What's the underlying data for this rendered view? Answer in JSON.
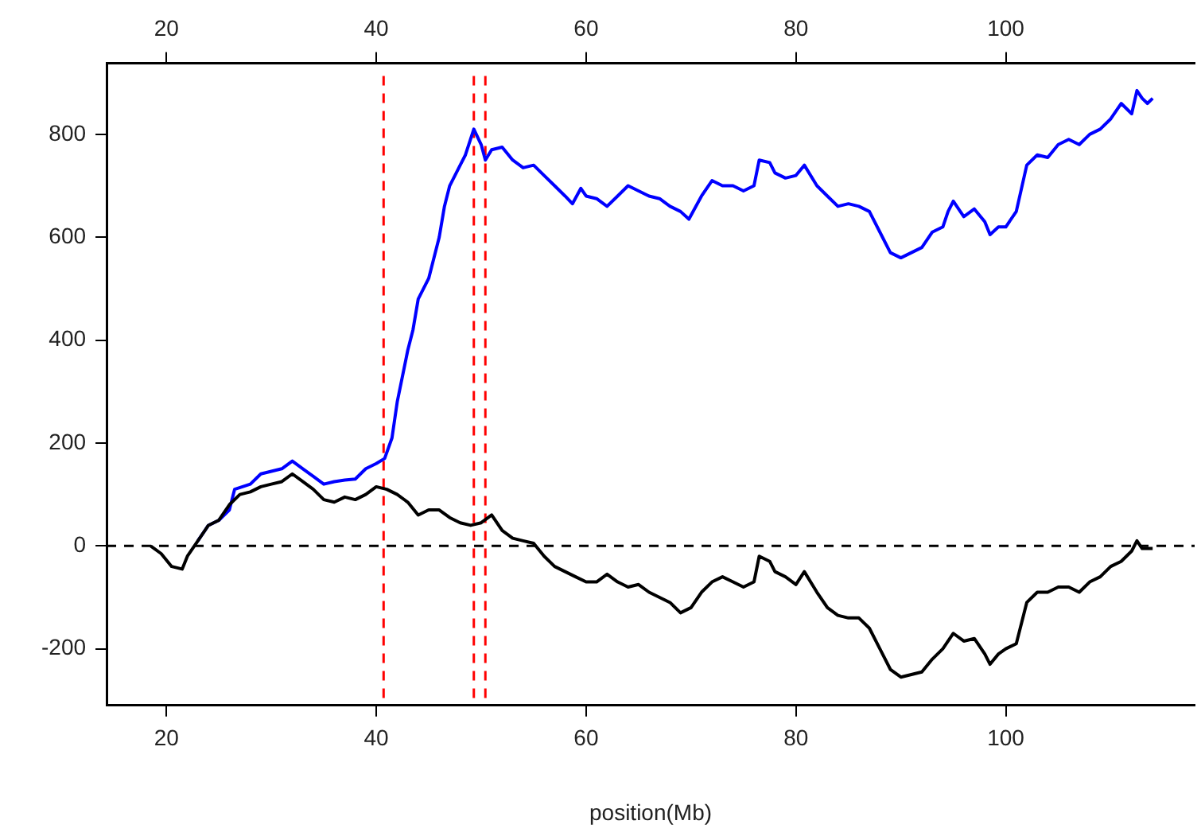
{
  "chart_data": {
    "type": "line",
    "xlabel": "position(Mb)",
    "xlim": [
      14.3,
      118
    ],
    "xticks": [
      20,
      40,
      60,
      80,
      100
    ],
    "x2lim": [
      14.3,
      118
    ],
    "x2ticks": [
      20,
      40,
      60,
      80,
      100
    ],
    "ylim": [
      -310,
      938
    ],
    "yticks": [
      -200,
      0,
      200,
      400,
      600,
      800
    ],
    "grid": false,
    "legend": false,
    "marker": "none",
    "line_style": "solid",
    "series": [
      {
        "color": "#0000ff",
        "x": [
          23,
          24,
          25,
          26,
          26.5,
          28,
          29,
          30,
          31,
          32,
          33,
          34,
          35,
          36,
          37,
          38,
          39,
          40,
          40.8,
          41.5,
          42,
          43,
          43.5,
          44,
          45,
          46,
          46.5,
          47,
          48,
          48.5,
          49.3,
          50,
          50.4,
          51,
          52,
          53,
          54,
          55,
          56,
          57,
          58,
          58.7,
          59.5,
          60,
          61,
          62,
          63,
          64,
          65,
          66,
          67,
          68,
          69,
          69.8,
          71,
          72,
          73,
          74,
          75,
          76,
          76.5,
          77.5,
          78,
          79,
          80,
          80.8,
          82,
          83,
          84,
          85,
          86,
          87,
          88,
          89,
          90,
          91,
          92,
          93,
          94,
          94.5,
          95,
          96,
          97,
          98,
          98.5,
          99.3,
          100,
          101,
          102,
          103,
          104,
          105,
          106,
          107,
          108,
          109,
          110,
          111,
          112,
          112.5,
          113,
          113.5,
          114
        ],
        "values": [
          10,
          40,
          50,
          70,
          110,
          120,
          140,
          145,
          150,
          165,
          150,
          135,
          120,
          125,
          128,
          130,
          150,
          160,
          170,
          210,
          280,
          380,
          420,
          480,
          520,
          600,
          660,
          700,
          740,
          760,
          810,
          780,
          750,
          770,
          775,
          750,
          735,
          740,
          720,
          700,
          680,
          665,
          695,
          680,
          675,
          660,
          680,
          700,
          690,
          680,
          675,
          660,
          650,
          635,
          680,
          710,
          700,
          700,
          690,
          700,
          750,
          745,
          725,
          715,
          720,
          740,
          700,
          680,
          660,
          665,
          660,
          650,
          610,
          570,
          560,
          570,
          580,
          610,
          620,
          650,
          670,
          640,
          655,
          630,
          605,
          620,
          620,
          650,
          740,
          760,
          755,
          780,
          790,
          780,
          800,
          810,
          830,
          860,
          840,
          885,
          870,
          860,
          870
        ]
      },
      {
        "color": "#000000",
        "x": [
          18.5,
          19.5,
          20.5,
          21.5,
          22,
          23,
          24,
          25,
          26,
          27,
          28,
          29,
          30,
          31,
          32,
          33,
          34,
          35,
          36,
          37,
          38,
          39,
          40,
          41,
          42,
          43,
          44,
          45,
          46,
          47,
          48,
          49,
          50,
          51,
          52,
          53,
          54,
          55,
          56,
          57,
          58,
          59,
          60,
          61,
          62,
          63,
          64,
          65,
          66,
          67,
          68,
          69,
          70,
          71,
          72,
          73,
          74,
          75,
          76,
          76.5,
          77.5,
          78,
          79,
          80,
          80.8,
          82,
          83,
          84,
          85,
          86,
          87,
          88,
          89,
          90,
          91,
          92,
          93,
          94,
          95,
          96,
          97,
          98,
          98.5,
          99.3,
          100,
          101,
          102,
          103,
          104,
          105,
          106,
          107,
          108,
          109,
          110,
          111,
          112,
          112.5,
          113,
          114
        ],
        "values": [
          0,
          -15,
          -40,
          -45,
          -20,
          10,
          40,
          50,
          80,
          100,
          105,
          115,
          120,
          125,
          140,
          125,
          110,
          90,
          85,
          95,
          90,
          100,
          115,
          110,
          100,
          85,
          60,
          70,
          70,
          55,
          45,
          40,
          45,
          60,
          30,
          15,
          10,
          5,
          -20,
          -40,
          -50,
          -60,
          -70,
          -70,
          -55,
          -70,
          -80,
          -75,
          -90,
          -100,
          -110,
          -130,
          -120,
          -90,
          -70,
          -60,
          -70,
          -80,
          -70,
          -20,
          -30,
          -50,
          -60,
          -75,
          -50,
          -90,
          -120,
          -135,
          -140,
          -140,
          -160,
          -200,
          -240,
          -255,
          -250,
          -245,
          -220,
          -200,
          -170,
          -185,
          -180,
          -210,
          -230,
          -210,
          -200,
          -190,
          -110,
          -90,
          -90,
          -80,
          -80,
          -90,
          -70,
          -60,
          -40,
          -30,
          -10,
          10,
          -5,
          -5
        ]
      }
    ],
    "ref_lines": [
      {
        "axis": "y",
        "value": 0,
        "color": "#000000",
        "line_style": "dashed"
      },
      {
        "axis": "x",
        "value": 40.7,
        "color": "#ff0000",
        "line_style": "dashed"
      },
      {
        "axis": "x",
        "value": 49.3,
        "color": "#ff0000",
        "line_style": "dashed"
      },
      {
        "axis": "x",
        "value": 50.4,
        "color": "#ff0000",
        "line_style": "dashed"
      }
    ]
  }
}
